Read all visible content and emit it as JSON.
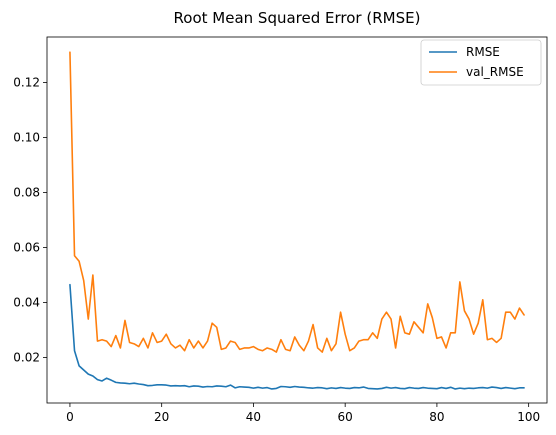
{
  "chart_data": {
    "type": "line",
    "title": "Root Mean Squared Error (RMSE)",
    "xlabel": "",
    "ylabel": "",
    "xlim": [
      -5,
      104
    ],
    "ylim": [
      0.0035,
      0.1365
    ],
    "xticks": [
      0,
      20,
      40,
      60,
      80,
      100
    ],
    "xtick_labels": [
      "0",
      "20",
      "40",
      "60",
      "80",
      "100"
    ],
    "yticks": [
      0.02,
      0.04,
      0.06,
      0.08,
      0.1,
      0.12
    ],
    "ytick_labels": [
      "0.02",
      "0.04",
      "0.06",
      "0.08",
      "0.10",
      "0.12"
    ],
    "grid": false,
    "legend_position": "top-right",
    "x": [
      0,
      1,
      2,
      3,
      4,
      5,
      6,
      7,
      8,
      9,
      10,
      11,
      12,
      13,
      14,
      15,
      16,
      17,
      18,
      19,
      20,
      21,
      22,
      23,
      24,
      25,
      26,
      27,
      28,
      29,
      30,
      31,
      32,
      33,
      34,
      35,
      36,
      37,
      38,
      39,
      40,
      41,
      42,
      43,
      44,
      45,
      46,
      47,
      48,
      49,
      50,
      51,
      52,
      53,
      54,
      55,
      56,
      57,
      58,
      59,
      60,
      61,
      62,
      63,
      64,
      65,
      66,
      67,
      68,
      69,
      70,
      71,
      72,
      73,
      74,
      75,
      76,
      77,
      78,
      79,
      80,
      81,
      82,
      83,
      84,
      85,
      86,
      87,
      88,
      89,
      90,
      91,
      92,
      93,
      94,
      95,
      96,
      97,
      98,
      99
    ],
    "series": [
      {
        "name": "RMSE",
        "color": "#1f77b4",
        "values": [
          0.0465,
          0.0225,
          0.017,
          0.0155,
          0.014,
          0.0133,
          0.012,
          0.0115,
          0.0125,
          0.0118,
          0.011,
          0.0108,
          0.0107,
          0.0105,
          0.0107,
          0.0104,
          0.0102,
          0.0098,
          0.0099,
          0.0101,
          0.0101,
          0.01,
          0.0097,
          0.0098,
          0.0097,
          0.0098,
          0.0094,
          0.0097,
          0.0096,
          0.0093,
          0.0095,
          0.0094,
          0.0097,
          0.0096,
          0.0094,
          0.01,
          0.009,
          0.0094,
          0.0093,
          0.0092,
          0.0089,
          0.0092,
          0.0089,
          0.0091,
          0.0086,
          0.0088,
          0.0095,
          0.0094,
          0.0092,
          0.0095,
          0.0093,
          0.0092,
          0.009,
          0.0089,
          0.0091,
          0.009,
          0.0087,
          0.009,
          0.0088,
          0.0091,
          0.0089,
          0.0088,
          0.0091,
          0.009,
          0.0093,
          0.0088,
          0.0087,
          0.0086,
          0.0088,
          0.0092,
          0.0089,
          0.0091,
          0.0088,
          0.0087,
          0.0091,
          0.0089,
          0.0088,
          0.0091,
          0.0089,
          0.0088,
          0.0087,
          0.0091,
          0.0088,
          0.0092,
          0.0086,
          0.0089,
          0.0087,
          0.0089,
          0.0088,
          0.009,
          0.0091,
          0.0089,
          0.0093,
          0.0091,
          0.0088,
          0.0091,
          0.0089,
          0.0087,
          0.009,
          0.009
        ]
      },
      {
        "name": "val_RMSE",
        "color": "#ff7f0e",
        "values": [
          0.131,
          0.057,
          0.055,
          0.048,
          0.034,
          0.05,
          0.026,
          0.0265,
          0.026,
          0.024,
          0.028,
          0.0235,
          0.0335,
          0.0255,
          0.025,
          0.024,
          0.027,
          0.0235,
          0.029,
          0.0255,
          0.026,
          0.0285,
          0.025,
          0.0235,
          0.0245,
          0.0225,
          0.0265,
          0.0235,
          0.026,
          0.0235,
          0.026,
          0.0325,
          0.031,
          0.023,
          0.0235,
          0.026,
          0.0255,
          0.023,
          0.0235,
          0.0235,
          0.024,
          0.023,
          0.0225,
          0.0235,
          0.023,
          0.022,
          0.0265,
          0.023,
          0.0225,
          0.0275,
          0.0245,
          0.0225,
          0.026,
          0.032,
          0.0235,
          0.022,
          0.027,
          0.0225,
          0.025,
          0.0365,
          0.0285,
          0.0225,
          0.0235,
          0.026,
          0.0265,
          0.0265,
          0.029,
          0.027,
          0.034,
          0.0365,
          0.034,
          0.0235,
          0.035,
          0.029,
          0.0285,
          0.033,
          0.031,
          0.029,
          0.0395,
          0.0345,
          0.027,
          0.0275,
          0.0235,
          0.029,
          0.029,
          0.0475,
          0.037,
          0.034,
          0.0285,
          0.0325,
          0.041,
          0.0265,
          0.027,
          0.0255,
          0.027,
          0.0365,
          0.0365,
          0.034,
          0.038,
          0.0355
        ]
      }
    ]
  }
}
